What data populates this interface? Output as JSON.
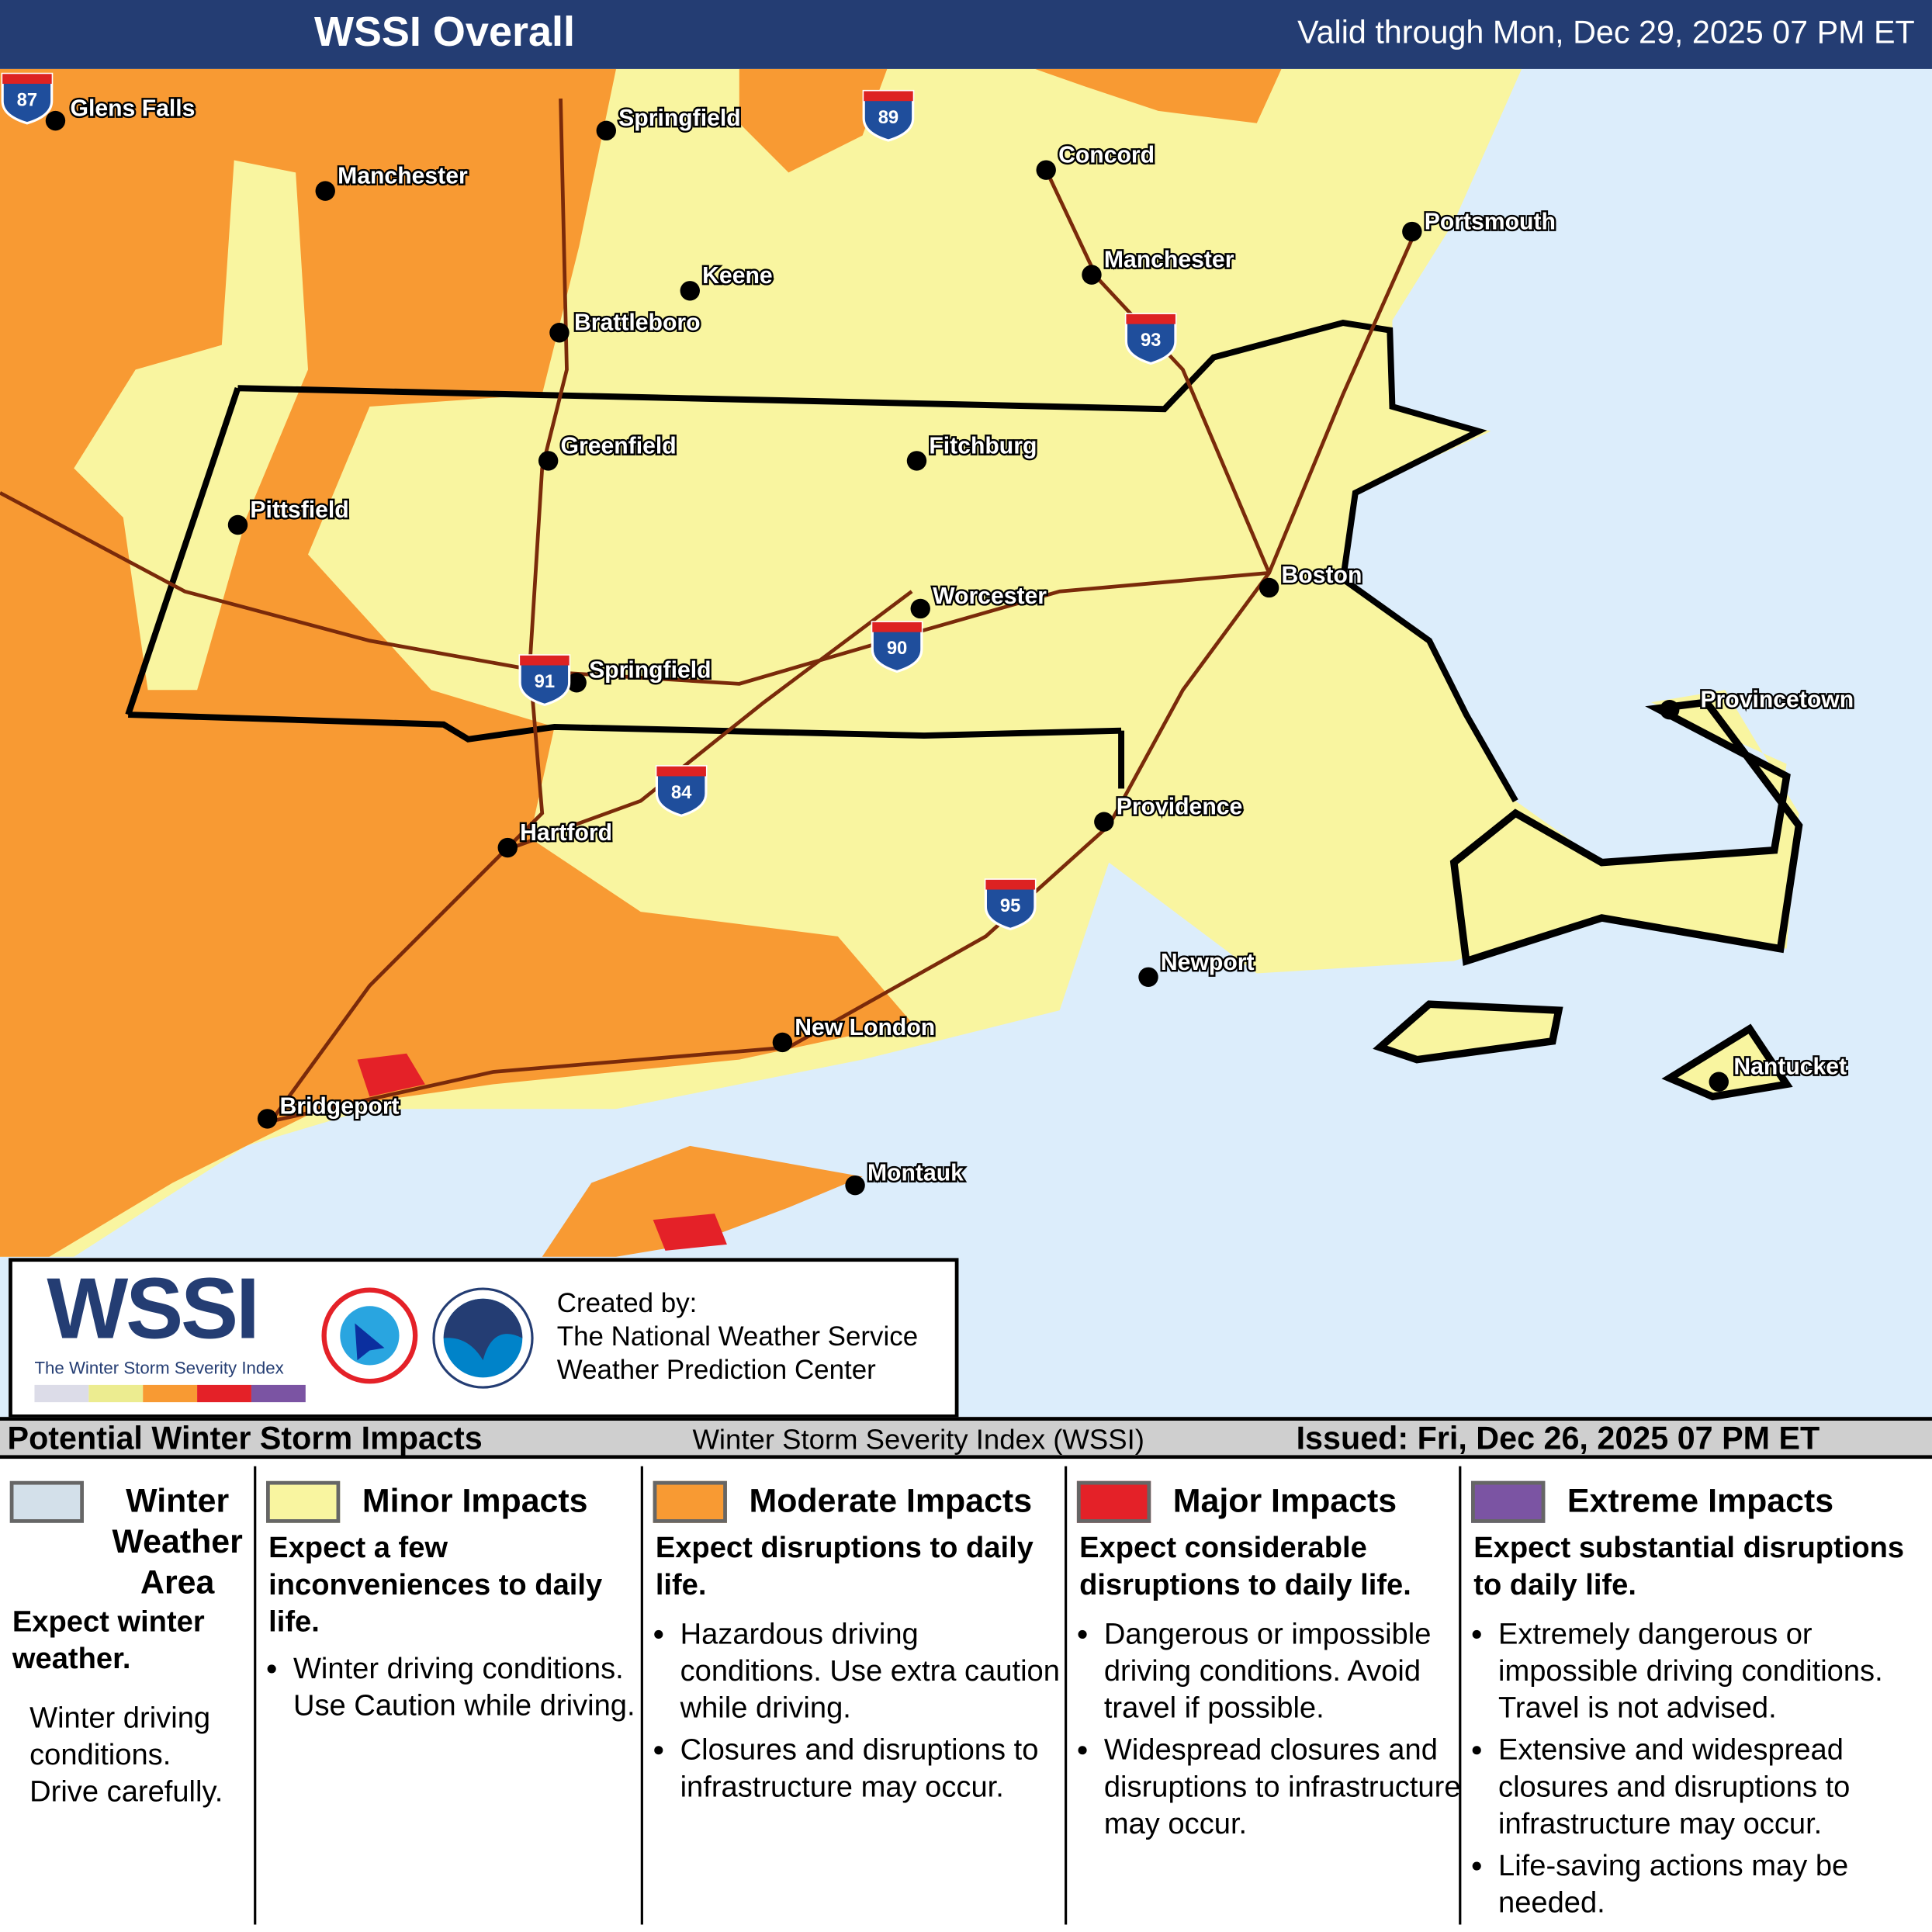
{
  "header": {
    "title": "WSSI Overall",
    "valid": "Valid through Mon, Dec 29, 2025 07 PM ET"
  },
  "colors": {
    "header": "#243d73",
    "ocean": "#dcedfb",
    "winter": "#d3e0ea",
    "minor": "#f9f5a0",
    "moderate": "#f89a33",
    "major": "#e42128",
    "extreme": "#7b54a3"
  },
  "map": {
    "cities": [
      "Glens Falls",
      "Springfield",
      "Manchester",
      "Concord",
      "Portsmouth",
      "Keene",
      "Manchester",
      "Brattleboro",
      "Greenfield",
      "Fitchburg",
      "Pittsfield",
      "Boston",
      "Worcester",
      "Springfield",
      "Provincetown",
      "Providence",
      "Hartford",
      "Newport",
      "New London",
      "Nantucket",
      "Bridgeport",
      "Montauk"
    ],
    "interstates": [
      "87",
      "89",
      "93",
      "91",
      "90",
      "84",
      "95"
    ]
  },
  "logo": {
    "wssi": "WSSI",
    "subtitle": "The Winter Storm Severity Index",
    "created_by": "Created by:",
    "org1": "The National Weather Service",
    "org2": "Weather Prediction Center"
  },
  "strip": {
    "left": "Potential Winter Storm Impacts",
    "center": "Winter Storm Severity Index (WSSI)",
    "issued": "Issued: Fri, Dec 26, 2025 07 PM ET"
  },
  "legend": [
    {
      "title": "Winter Weather Area",
      "desc": "Expect winter weather.",
      "bullets": [
        "Winter driving conditions. Drive carefully."
      ]
    },
    {
      "title": "Minor Impacts",
      "desc": "Expect a few inconveniences to daily life.",
      "bullets": [
        "Winter driving conditions. Use Caution while driving."
      ]
    },
    {
      "title": "Moderate Impacts",
      "desc": "Expect disruptions to daily life.",
      "bullets": [
        "Hazardous driving conditions. Use extra caution while driving.",
        "Closures and disruptions to infrastructure may occur."
      ]
    },
    {
      "title": "Major Impacts",
      "desc": "Expect considerable disruptions to daily life.",
      "bullets": [
        "Dangerous or impossible driving conditions. Avoid travel if possible.",
        "Widespread closures and disruptions to infrastructure may occur."
      ]
    },
    {
      "title": "Extreme Impacts",
      "desc": "Expect substantial disruptions to daily life.",
      "bullets": [
        "Extremely dangerous or impossible driving conditions. Travel is not advised.",
        "Extensive and widespread closures and disruptions to infrastructure may occur.",
        "Life-saving actions may be needed."
      ]
    }
  ]
}
